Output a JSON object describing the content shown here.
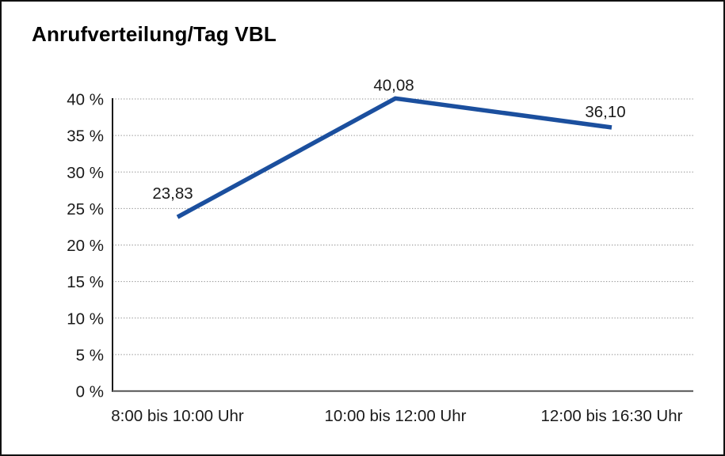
{
  "chart_data": {
    "type": "line",
    "title": "Anrufverteilung/Tag VBL",
    "categories": [
      "8:00 bis 10:00 Uhr",
      "10:00 bis 12:00 Uhr",
      "12:00 bis 16:30 Uhr"
    ],
    "values": [
      23.83,
      40.08,
      36.1
    ],
    "data_labels": [
      "23,83",
      "40,08",
      "36,10"
    ],
    "xlabel": "",
    "ylabel": "",
    "ylim": [
      0,
      40
    ],
    "y_tick_step": 5,
    "y_tick_labels": [
      "0 %",
      "5 %",
      "10 %",
      "15 %",
      "20 %",
      "25 %",
      "30 %",
      "35 %",
      "40 %"
    ],
    "grid": "horizontal-dotted",
    "legend": "none",
    "colors": {
      "line": "#1b4f9e",
      "gridline": "#8c8c8c",
      "baseline": "#666666",
      "axis": "#1a1a1a",
      "text": "#1a1a1a",
      "frame_border": "#111111",
      "background": "#ffffff"
    }
  }
}
